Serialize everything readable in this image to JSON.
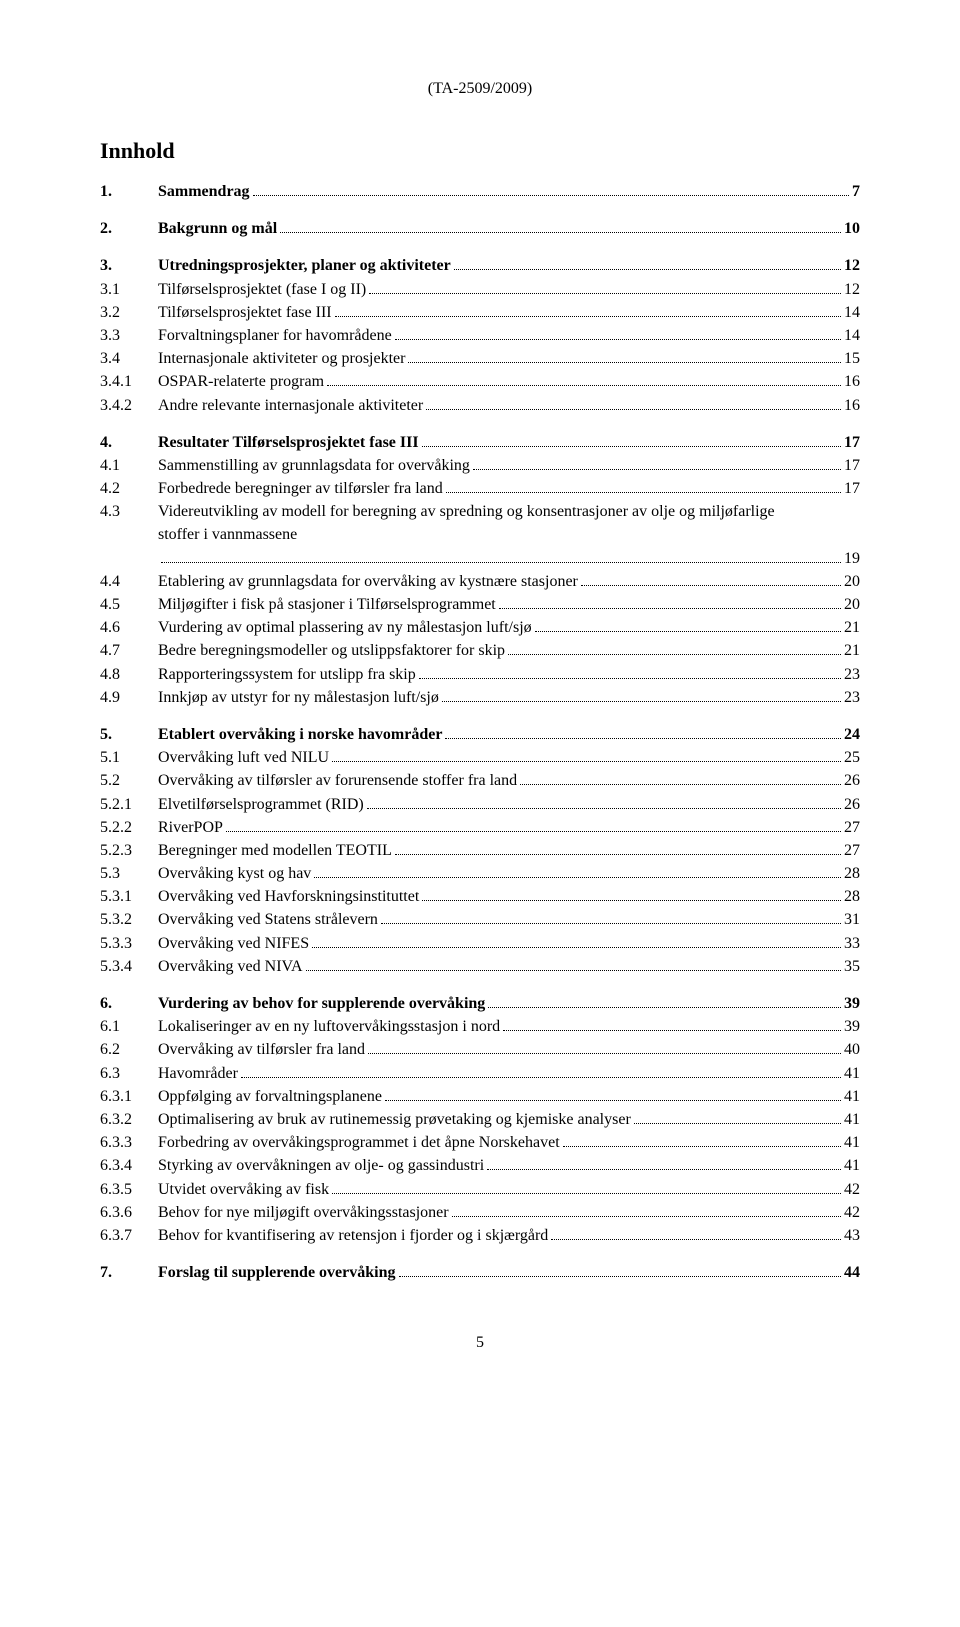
{
  "doc_id": "(TA-2509/2009)",
  "heading": "Innhold",
  "page_number": "5",
  "toc": [
    {
      "section": [
        {
          "num": "1.",
          "text": "Sammendrag",
          "page": "7",
          "bold": true
        }
      ]
    },
    {
      "section": [
        {
          "num": "2.",
          "text": "Bakgrunn og mål",
          "page": "10",
          "bold": true
        }
      ]
    },
    {
      "section": [
        {
          "num": "3.",
          "text": "Utredningsprosjekter, planer og aktiviteter",
          "page": "12",
          "bold": true
        },
        {
          "num": "3.1",
          "text": "Tilførselsprosjektet (fase I og II)",
          "page": "12"
        },
        {
          "num": "3.2",
          "text": "Tilførselsprosjektet fase III",
          "page": "14"
        },
        {
          "num": "3.3",
          "text": "Forvaltningsplaner for havområdene",
          "page": "14"
        },
        {
          "num": "3.4",
          "text": "Internasjonale aktiviteter og prosjekter",
          "page": "15"
        },
        {
          "num": "3.4.1",
          "text": "OSPAR-relaterte program",
          "page": "16"
        },
        {
          "num": "3.4.2",
          "text": "Andre relevante internasjonale aktiviteter",
          "page": "16"
        }
      ]
    },
    {
      "section": [
        {
          "num": "4.",
          "text": "Resultater Tilførselsprosjektet fase III",
          "page": "17",
          "bold": true
        },
        {
          "num": "4.1",
          "text": "Sammenstilling av grunnlagsdata for overvåking",
          "page": "17"
        },
        {
          "num": "4.2",
          "text": "Forbedrede beregninger av tilførsler fra land",
          "page": "17"
        },
        {
          "num": "4.3",
          "text": "Videreutvikling av modell for beregning av spredning og konsentrasjoner av olje og miljøfarlige stoffer i vannmassene",
          "page": "19",
          "multi": true
        },
        {
          "num": "4.4",
          "text": "Etablering av grunnlagsdata for overvåking av kystnære stasjoner",
          "page": "20"
        },
        {
          "num": "4.5",
          "text": "Miljøgifter i fisk på stasjoner i Tilførselsprogrammet",
          "page": "20"
        },
        {
          "num": "4.6",
          "text": "Vurdering av optimal plassering av ny målestasjon luft/sjø",
          "page": "21"
        },
        {
          "num": "4.7",
          "text": "Bedre beregningsmodeller og utslippsfaktorer for skip",
          "page": "21"
        },
        {
          "num": "4.8",
          "text": "Rapporteringssystem for utslipp fra skip",
          "page": "23"
        },
        {
          "num": "4.9",
          "text": "Innkjøp av utstyr for ny målestasjon luft/sjø",
          "page": "23"
        }
      ]
    },
    {
      "section": [
        {
          "num": "5.",
          "text": "Etablert overvåking i norske havområder",
          "page": "24",
          "bold": true
        },
        {
          "num": "5.1",
          "text": "Overvåking luft ved NILU",
          "page": "25"
        },
        {
          "num": "5.2",
          "text": "Overvåking av tilførsler av forurensende stoffer fra land",
          "page": "26"
        },
        {
          "num": "5.2.1",
          "text": "Elvetilførselsprogrammet (RID)",
          "page": "26"
        },
        {
          "num": "5.2.2",
          "text": "RiverPOP",
          "page": "27"
        },
        {
          "num": "5.2.3",
          "text": "Beregninger med modellen TEOTIL",
          "page": "27"
        },
        {
          "num": "5.3",
          "text": "Overvåking kyst og hav",
          "page": "28"
        },
        {
          "num": "5.3.1",
          "text": "Overvåking ved Havforskningsinstituttet",
          "page": "28"
        },
        {
          "num": "5.3.2",
          "text": "Overvåking ved Statens strålevern",
          "page": "31"
        },
        {
          "num": "5.3.3",
          "text": "Overvåking ved NIFES",
          "page": "33"
        },
        {
          "num": "5.3.4",
          "text": "Overvåking ved NIVA",
          "page": "35"
        }
      ]
    },
    {
      "section": [
        {
          "num": "6.",
          "text": "Vurdering av behov for supplerende overvåking",
          "page": "39",
          "bold": true
        },
        {
          "num": "6.1",
          "text": "Lokaliseringer av en ny luftovervåkingsstasjon i nord",
          "page": "39"
        },
        {
          "num": "6.2",
          "text": "Overvåking av tilførsler fra land",
          "page": "40"
        },
        {
          "num": "6.3",
          "text": "Havområder",
          "page": "41"
        },
        {
          "num": "6.3.1",
          "text": "Oppfølging av forvaltningsplanene",
          "page": "41"
        },
        {
          "num": "6.3.2",
          "text": "Optimalisering av bruk av rutinemessig prøvetaking og kjemiske analyser",
          "page": "41"
        },
        {
          "num": "6.3.3",
          "text": "Forbedring av overvåkingsprogrammet i det åpne Norskehavet",
          "page": "41"
        },
        {
          "num": "6.3.4",
          "text": "Styrking av overvåkningen av olje- og gassindustri",
          "page": "41"
        },
        {
          "num": "6.3.5",
          "text": "Utvidet overvåking av fisk",
          "page": "42"
        },
        {
          "num": "6.3.6",
          "text": "Behov for nye miljøgift overvåkingsstasjoner",
          "page": "42"
        },
        {
          "num": "6.3.7",
          "text": "Behov for kvantifisering av retensjon i fjorder og i skjærgård",
          "page": "43"
        }
      ]
    },
    {
      "section": [
        {
          "num": "7.",
          "text": "Forslag til supplerende overvåking",
          "page": "44",
          "bold": true
        }
      ]
    }
  ]
}
